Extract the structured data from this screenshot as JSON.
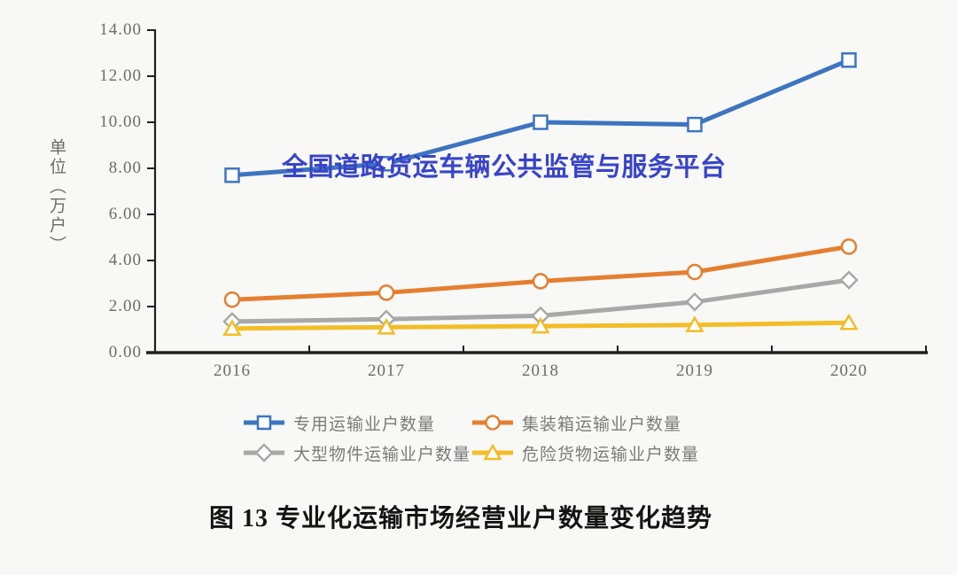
{
  "page": {
    "background": "#f8f8f6"
  },
  "watermark": {
    "text": "全国道路货运车辆公共监管与服务平台",
    "color": "#3844c9"
  },
  "caption": "图 13 专业化运输市场经营业户数量变化趋势",
  "chart_data": {
    "type": "line",
    "title": "图 13 专业化运输市场经营业户数量变化趋势",
    "ylabel": "单位（万户）",
    "categories": [
      "2016",
      "2017",
      "2018",
      "2019",
      "2020"
    ],
    "series": [
      {
        "name": "专用运输业户数量",
        "marker": "square",
        "color": "#3d74c0",
        "values": [
          7.7,
          8.2,
          10.0,
          9.9,
          12.7
        ]
      },
      {
        "name": "集装箱运输业户数量",
        "marker": "circle",
        "color": "#e47f31",
        "values": [
          2.3,
          2.6,
          3.1,
          3.5,
          4.6
        ]
      },
      {
        "name": "大型物件运输业户数量",
        "marker": "diamond",
        "color": "#a8a8a8",
        "values": [
          1.35,
          1.45,
          1.6,
          2.2,
          3.15
        ]
      },
      {
        "name": "危险货物运输业户数量",
        "marker": "triangle",
        "color": "#f3bd28",
        "values": [
          1.05,
          1.1,
          1.15,
          1.2,
          1.3
        ]
      }
    ],
    "y_ticks": [
      "0.00",
      "2.00",
      "4.00",
      "6.00",
      "8.00",
      "10.00",
      "12.00",
      "14.00"
    ],
    "ylim": [
      0,
      14
    ],
    "y_tick_step": 2,
    "grid": false,
    "legend_position": "bottom",
    "axis_color": "#1f1f1f",
    "tick_label_color": "#6b6b6b"
  }
}
